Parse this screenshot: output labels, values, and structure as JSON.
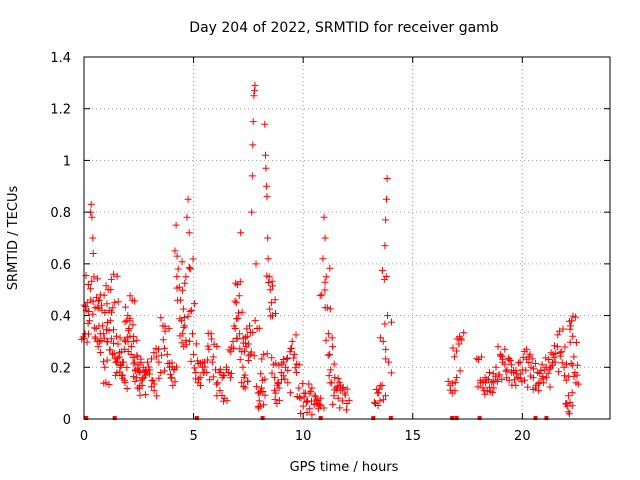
{
  "chart_data": {
    "type": "scatter",
    "title": "Day 204 of 2022, SRMTID for receiver gamb",
    "xlabel": "GPS time / hours",
    "ylabel": "SRMTID / TECUs",
    "xlim": [
      0,
      24
    ],
    "ylim": [
      0,
      1.4
    ],
    "xticks": [
      0,
      5,
      10,
      15,
      20
    ],
    "xtick_labels": [
      "0",
      "5",
      "10",
      "15",
      "20"
    ],
    "yticks": [
      0,
      0.2,
      0.4,
      0.6,
      0.8,
      1.0,
      1.2,
      1.4
    ],
    "ytick_labels": [
      "0",
      "0.2",
      "0.4",
      "0.6",
      "0.8",
      "1",
      "1.2",
      "1.4"
    ],
    "grid": true,
    "marker": "+",
    "series": [
      {
        "name": "SRMTID",
        "color": "#ff0000",
        "points": [
          [
            0.0,
            0.31
          ],
          [
            0.05,
            0.33
          ],
          [
            0.1,
            0.42
          ],
          [
            0.15,
            0.45
          ],
          [
            0.2,
            0.52
          ],
          [
            0.25,
            0.38
          ],
          [
            0.3,
            0.8
          ],
          [
            0.33,
            0.83
          ],
          [
            0.36,
            0.78
          ],
          [
            0.4,
            0.7
          ],
          [
            0.42,
            0.64
          ],
          [
            0.45,
            0.55
          ],
          [
            0.5,
            0.43
          ],
          [
            0.55,
            0.35
          ],
          [
            0.6,
            0.3
          ],
          [
            0.65,
            0.28
          ],
          [
            0.7,
            0.46
          ],
          [
            0.75,
            0.48
          ],
          [
            0.8,
            0.44
          ],
          [
            0.85,
            0.36
          ],
          [
            0.9,
            0.33
          ],
          [
            0.95,
            0.2
          ],
          [
            1.0,
            0.14
          ],
          [
            1.05,
            0.3
          ],
          [
            1.1,
            0.5
          ],
          [
            1.15,
            0.42
          ],
          [
            1.2,
            0.38
          ],
          [
            1.25,
            0.31
          ],
          [
            1.3,
            0.25
          ],
          [
            1.35,
            0.56
          ],
          [
            1.4,
            0.45
          ],
          [
            1.45,
            0.22
          ],
          [
            1.5,
            0.18
          ],
          [
            1.55,
            0.29
          ],
          [
            1.6,
            0.24
          ],
          [
            1.65,
            0.2
          ],
          [
            1.7,
            0.26
          ],
          [
            1.75,
            0.17
          ],
          [
            1.8,
            0.22
          ],
          [
            1.85,
            0.15
          ],
          [
            1.9,
            0.3
          ],
          [
            1.95,
            0.38
          ],
          [
            2.0,
            0.4
          ],
          [
            2.05,
            0.35
          ],
          [
            2.1,
            0.32
          ],
          [
            2.15,
            0.25
          ],
          [
            2.2,
            0.46
          ],
          [
            2.25,
            0.3
          ],
          [
            2.3,
            0.22
          ],
          [
            2.35,
            0.19
          ],
          [
            2.4,
            0.16
          ],
          [
            2.45,
            0.12
          ],
          [
            2.5,
            0.21
          ],
          [
            2.55,
            0.18
          ],
          [
            2.6,
            0.15
          ],
          [
            2.65,
            0.13
          ],
          [
            2.7,
            0.2
          ],
          [
            2.8,
            0.17
          ],
          [
            2.9,
            0.22
          ],
          [
            3.0,
            0.19
          ],
          [
            3.1,
            0.15
          ],
          [
            3.2,
            0.11
          ],
          [
            3.3,
            0.24
          ],
          [
            3.4,
            0.27
          ],
          [
            3.5,
            0.18
          ],
          [
            3.6,
            0.36
          ],
          [
            3.7,
            0.34
          ],
          [
            3.8,
            0.25
          ],
          [
            3.9,
            0.2
          ],
          [
            4.0,
            0.16
          ],
          [
            4.05,
            0.13
          ],
          [
            4.1,
            0.19
          ],
          [
            4.15,
            0.65
          ],
          [
            4.2,
            0.75
          ],
          [
            4.25,
            0.63
          ],
          [
            4.3,
            0.58
          ],
          [
            4.35,
            0.51
          ],
          [
            4.4,
            0.46
          ],
          [
            4.45,
            0.38
          ],
          [
            4.5,
            0.33
          ],
          [
            4.55,
            0.28
          ],
          [
            4.6,
            0.36
          ],
          [
            4.65,
            0.55
          ],
          [
            4.7,
            0.78
          ],
          [
            4.75,
            0.85
          ],
          [
            4.8,
            0.72
          ],
          [
            4.85,
            0.58
          ],
          [
            4.9,
            0.42
          ],
          [
            4.95,
            0.33
          ],
          [
            5.0,
            0.25
          ],
          [
            5.1,
            0.18
          ],
          [
            5.2,
            0.14
          ],
          [
            5.3,
            0.16
          ],
          [
            5.4,
            0.2
          ],
          [
            5.5,
            0.22
          ],
          [
            5.6,
            0.18
          ],
          [
            5.7,
            0.27
          ],
          [
            5.8,
            0.33
          ],
          [
            5.9,
            0.24
          ],
          [
            6.0,
            0.19
          ],
          [
            6.1,
            0.14
          ],
          [
            6.2,
            0.11
          ],
          [
            6.3,
            0.16
          ],
          [
            6.4,
            0.08
          ],
          [
            6.5,
            0.2
          ],
          [
            6.6,
            0.18
          ],
          [
            6.7,
            0.26
          ],
          [
            6.8,
            0.3
          ],
          [
            6.9,
            0.35
          ],
          [
            6.95,
            0.45
          ],
          [
            7.0,
            0.52
          ],
          [
            7.05,
            0.41
          ],
          [
            7.1,
            0.33
          ],
          [
            7.15,
            0.72
          ],
          [
            7.2,
            0.26
          ],
          [
            7.25,
            0.2
          ],
          [
            7.3,
            0.16
          ],
          [
            7.35,
            0.12
          ],
          [
            7.4,
            0.28
          ],
          [
            7.45,
            0.32
          ],
          [
            7.5,
            0.29
          ],
          [
            7.55,
            0.36
          ],
          [
            7.6,
            0.25
          ],
          [
            7.65,
            0.8
          ],
          [
            7.68,
            0.94
          ],
          [
            7.7,
            1.06
          ],
          [
            7.72,
            1.15
          ],
          [
            7.75,
            1.25
          ],
          [
            7.78,
            1.27
          ],
          [
            7.8,
            1.29
          ],
          [
            7.85,
            0.6
          ],
          [
            7.9,
            0.35
          ],
          [
            7.95,
            0.1
          ],
          [
            8.0,
            0.07
          ],
          [
            8.05,
            0.05
          ],
          [
            8.1,
            0.12
          ],
          [
            8.15,
            0.15
          ],
          [
            8.2,
            0.25
          ],
          [
            8.25,
            1.14
          ],
          [
            8.28,
            1.02
          ],
          [
            8.3,
            0.97
          ],
          [
            8.33,
            0.9
          ],
          [
            8.35,
            0.86
          ],
          [
            8.38,
            0.7
          ],
          [
            8.4,
            0.62
          ],
          [
            8.45,
            0.55
          ],
          [
            8.5,
            0.5
          ],
          [
            8.55,
            0.45
          ],
          [
            8.6,
            0.4
          ],
          [
            8.65,
            0.21
          ],
          [
            8.7,
            0.16
          ],
          [
            8.75,
            0.1
          ],
          [
            8.8,
            0.06
          ],
          [
            8.9,
            0.12
          ],
          [
            9.0,
            0.18
          ],
          [
            9.1,
            0.22
          ],
          [
            9.2,
            0.2
          ],
          [
            9.3,
            0.14
          ],
          [
            9.4,
            0.26
          ],
          [
            9.5,
            0.3
          ],
          [
            9.6,
            0.25
          ],
          [
            9.7,
            0.18
          ],
          [
            9.8,
            0.12
          ],
          [
            9.9,
            0.08
          ],
          [
            10.0,
            0.05
          ],
          [
            10.1,
            0.1
          ],
          [
            10.2,
            0.07
          ],
          [
            10.3,
            0.04
          ],
          [
            10.4,
            0.12
          ],
          [
            10.5,
            0.09
          ],
          [
            10.6,
            0.06
          ],
          [
            10.7,
            0.04
          ],
          [
            10.8,
            0.08
          ],
          [
            10.85,
            0.48
          ],
          [
            10.9,
            0.62
          ],
          [
            10.95,
            0.78
          ],
          [
            11.0,
            0.7
          ],
          [
            11.05,
            0.55
          ],
          [
            11.1,
            0.43
          ],
          [
            11.15,
            0.33
          ],
          [
            11.2,
            0.25
          ],
          [
            11.25,
            0.19
          ],
          [
            11.3,
            0.14
          ],
          [
            11.4,
            0.09
          ],
          [
            11.5,
            0.12
          ],
          [
            11.6,
            0.08
          ],
          [
            11.7,
            0.13
          ],
          [
            11.8,
            0.07
          ],
          [
            11.9,
            0.1
          ],
          [
            12.0,
            0.06
          ],
          [
            13.3,
            0.06
          ],
          [
            13.4,
            0.1
          ],
          [
            13.5,
            0.07
          ],
          [
            13.6,
            0.13
          ],
          [
            13.65,
            0.3
          ],
          [
            13.7,
            0.54
          ],
          [
            13.73,
            0.67
          ],
          [
            13.76,
            0.77
          ],
          [
            13.8,
            0.85
          ],
          [
            13.83,
            0.93
          ],
          [
            13.85,
            0.4
          ],
          [
            13.9,
            0.22
          ],
          [
            16.7,
            0.13
          ],
          [
            16.8,
            0.1
          ],
          [
            16.9,
            0.24
          ],
          [
            17.0,
            0.16
          ],
          [
            17.1,
            0.29
          ],
          [
            17.2,
            0.31
          ],
          [
            18.0,
            0.23
          ],
          [
            18.1,
            0.14
          ],
          [
            18.2,
            0.12
          ],
          [
            18.3,
            0.16
          ],
          [
            18.4,
            0.11
          ],
          [
            18.5,
            0.18
          ],
          [
            18.6,
            0.14
          ],
          [
            18.7,
            0.12
          ],
          [
            18.8,
            0.2
          ],
          [
            18.9,
            0.17
          ],
          [
            19.0,
            0.25
          ],
          [
            19.1,
            0.22
          ],
          [
            19.2,
            0.27
          ],
          [
            19.3,
            0.19
          ],
          [
            19.4,
            0.15
          ],
          [
            19.5,
            0.21
          ],
          [
            19.6,
            0.18
          ],
          [
            19.7,
            0.13
          ],
          [
            19.8,
            0.16
          ],
          [
            19.9,
            0.22
          ],
          [
            20.0,
            0.19
          ],
          [
            20.1,
            0.15
          ],
          [
            20.2,
            0.27
          ],
          [
            20.3,
            0.24
          ],
          [
            20.4,
            0.2
          ],
          [
            20.5,
            0.16
          ],
          [
            20.6,
            0.12
          ],
          [
            20.7,
            0.18
          ],
          [
            20.8,
            0.14
          ],
          [
            20.9,
            0.21
          ],
          [
            21.0,
            0.19
          ],
          [
            21.1,
            0.16
          ],
          [
            21.2,
            0.23
          ],
          [
            21.3,
            0.2
          ],
          [
            21.4,
            0.25
          ],
          [
            21.5,
            0.22
          ],
          [
            21.6,
            0.28
          ],
          [
            21.7,
            0.34
          ],
          [
            21.8,
            0.26
          ],
          [
            21.9,
            0.2
          ],
          [
            22.0,
            0.15
          ],
          [
            22.05,
            0.05
          ],
          [
            22.1,
            0.09
          ],
          [
            22.15,
            0.02
          ],
          [
            22.2,
            0.36
          ],
          [
            22.25,
            0.38
          ],
          [
            22.3,
            0.32
          ],
          [
            22.35,
            0.24
          ],
          [
            22.4,
            0.18
          ],
          [
            22.45,
            0.14
          ]
        ],
        "zero_points": [
          0.1,
          1.4,
          5.15,
          8.15,
          10.8,
          13.2,
          14.0,
          16.8,
          17.0,
          18.05,
          20.6,
          21.1
        ]
      }
    ]
  }
}
